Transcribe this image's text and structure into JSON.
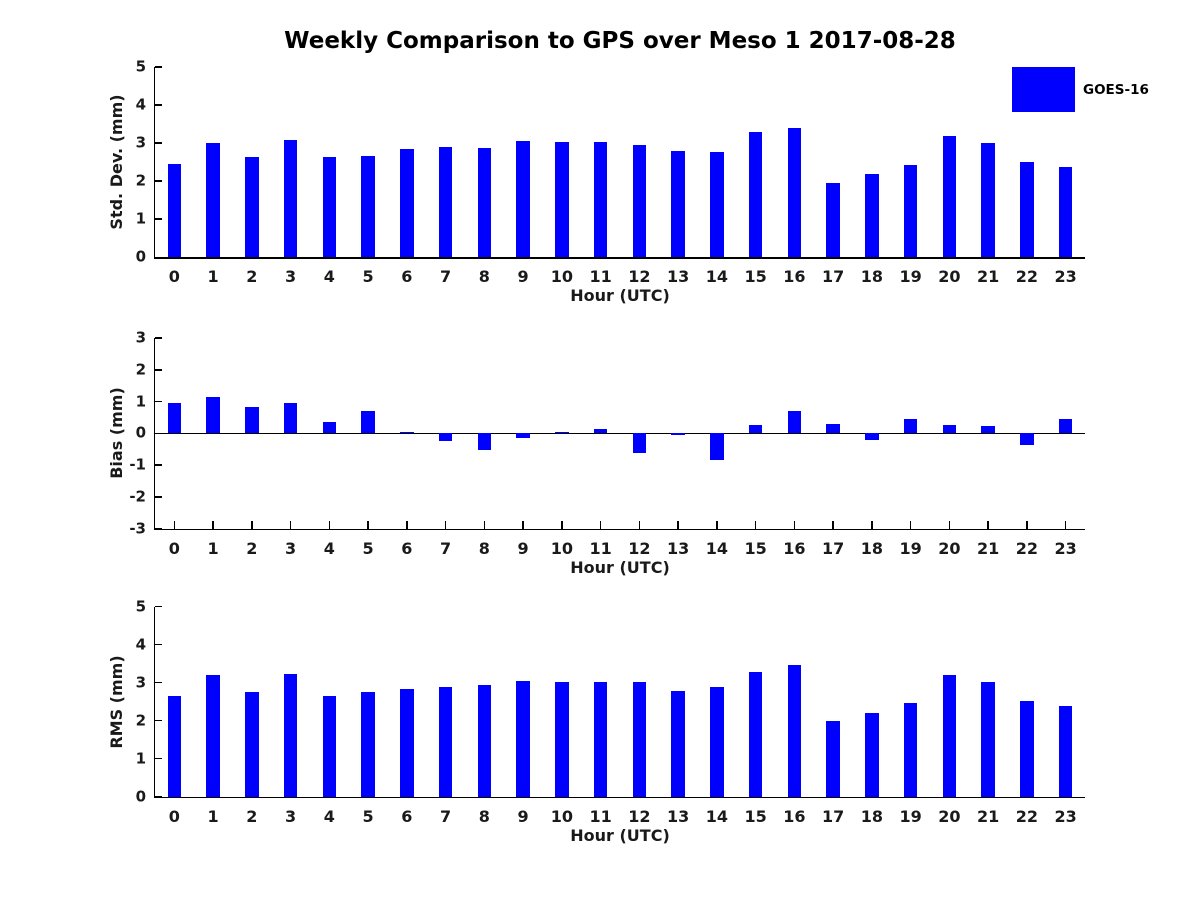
{
  "title": "Weekly Comparison to GPS over Meso 1 2017-08-28",
  "legend": {
    "label": "GOES-16",
    "position": "top-right",
    "color": "#0000ff"
  },
  "colors": {
    "bar": "#0000ff",
    "axis": "#000000",
    "background": "#ffffff",
    "text": "#000000"
  },
  "chart_data": [
    {
      "type": "bar",
      "name": "std-dev",
      "title": "",
      "ylabel": "Std. Dev. (mm)",
      "xlabel": "Hour (UTC)",
      "ylim": [
        0,
        5
      ],
      "yticks": [
        0,
        1,
        2,
        3,
        4,
        5
      ],
      "grid": false,
      "categories": [
        "0",
        "1",
        "2",
        "3",
        "4",
        "5",
        "6",
        "7",
        "8",
        "9",
        "10",
        "11",
        "12",
        "13",
        "14",
        "15",
        "16",
        "17",
        "18",
        "19",
        "20",
        "21",
        "22",
        "23"
      ],
      "values": [
        2.45,
        3.0,
        2.63,
        3.08,
        2.63,
        2.66,
        2.84,
        2.89,
        2.88,
        3.05,
        3.03,
        3.03,
        2.95,
        2.78,
        2.77,
        3.29,
        3.39,
        1.96,
        2.2,
        2.42,
        3.19,
        3.01,
        2.5,
        2.37
      ]
    },
    {
      "type": "bar",
      "name": "bias",
      "title": "",
      "ylabel": "Bias (mm)",
      "xlabel": "Hour (UTC)",
      "ylim": [
        -3,
        3
      ],
      "yticks": [
        3,
        2,
        1,
        0,
        -1,
        -2,
        -3
      ],
      "grid": false,
      "zero_line": true,
      "categories": [
        "0",
        "1",
        "2",
        "3",
        "4",
        "5",
        "6",
        "7",
        "8",
        "9",
        "10",
        "11",
        "12",
        "13",
        "14",
        "15",
        "16",
        "17",
        "18",
        "19",
        "20",
        "21",
        "22",
        "23"
      ],
      "values": [
        0.97,
        1.15,
        0.82,
        0.97,
        0.36,
        0.72,
        0.05,
        -0.25,
        -0.52,
        -0.15,
        0.05,
        0.13,
        -0.63,
        -0.04,
        -0.85,
        0.27,
        0.7,
        0.3,
        -0.2,
        0.45,
        0.27,
        0.22,
        -0.37,
        0.45
      ]
    },
    {
      "type": "bar",
      "name": "rms",
      "title": "",
      "ylabel": "RMS (mm)",
      "xlabel": "Hour (UTC)",
      "ylim": [
        0,
        5
      ],
      "yticks": [
        0,
        1,
        2,
        3,
        4,
        5
      ],
      "grid": false,
      "categories": [
        "0",
        "1",
        "2",
        "3",
        "4",
        "5",
        "6",
        "7",
        "8",
        "9",
        "10",
        "11",
        "12",
        "13",
        "14",
        "15",
        "16",
        "17",
        "18",
        "19",
        "20",
        "21",
        "22",
        "23"
      ],
      "values": [
        2.65,
        3.2,
        2.75,
        3.22,
        2.65,
        2.76,
        2.83,
        2.9,
        2.94,
        3.05,
        3.02,
        3.03,
        3.02,
        2.79,
        2.88,
        3.29,
        3.46,
        1.98,
        2.21,
        2.46,
        3.19,
        3.01,
        2.53,
        2.4
      ]
    }
  ]
}
